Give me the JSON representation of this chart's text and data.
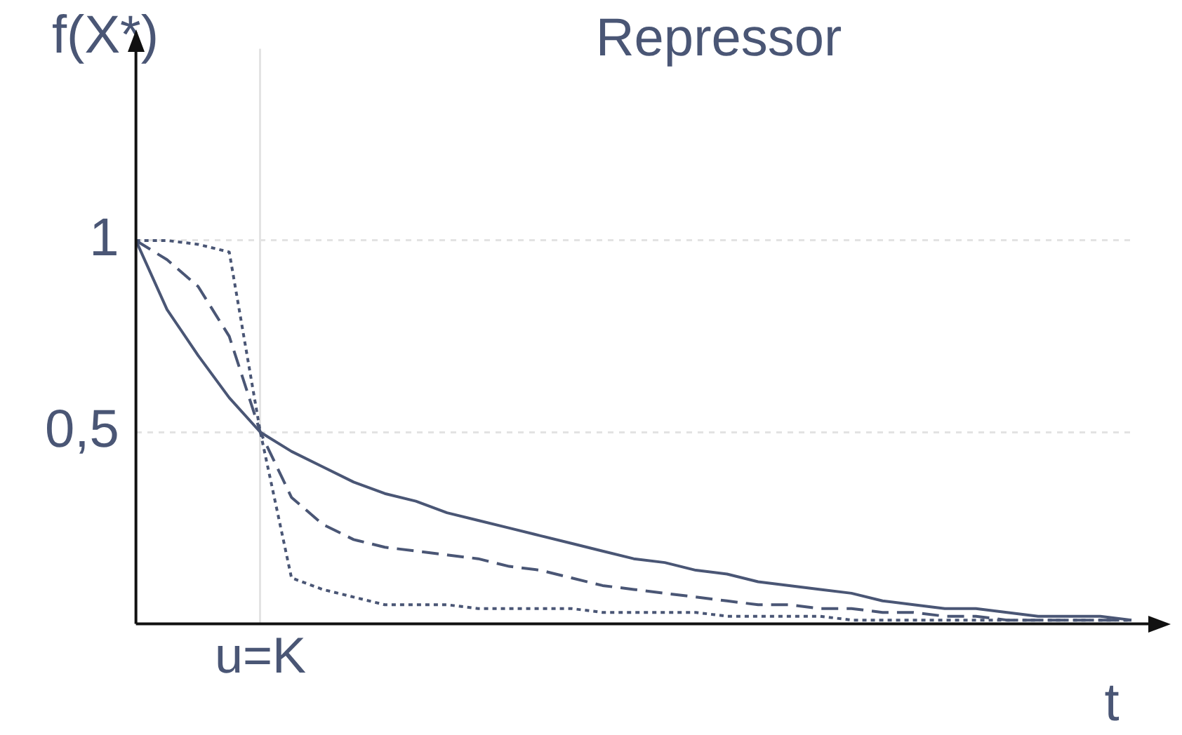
{
  "chart_data": {
    "type": "line",
    "title": "Repressor",
    "ylabel": "f(X*)",
    "xlabel": "t",
    "categories": [
      null,
      null,
      null,
      null,
      "u=K",
      null,
      null,
      null,
      null,
      null,
      null,
      null,
      null,
      null,
      null,
      null,
      null,
      null,
      null,
      null,
      null,
      null,
      null,
      null,
      null,
      null,
      null,
      null,
      null,
      null,
      null,
      null,
      null
    ],
    "ylim": [
      0,
      1.5
    ],
    "yticks": [
      {
        "value": 0.5,
        "label": "0,5"
      },
      {
        "value": 1,
        "label": "1"
      }
    ],
    "grid": true,
    "legend": false,
    "marker": "none",
    "series": [
      {
        "color": "#4a5675",
        "line_style": "solid",
        "values": [
          1,
          0.82,
          0.7,
          0.59,
          0.5,
          0.45,
          0.41,
          0.37,
          0.34,
          0.32,
          0.29,
          0.27,
          0.25,
          0.23,
          0.21,
          0.19,
          0.17,
          0.16,
          0.14,
          0.13,
          0.11,
          0.1,
          0.09,
          0.08,
          0.06,
          0.05,
          0.04,
          0.04,
          0.03,
          0.02,
          0.02,
          0.02,
          0.01
        ]
      },
      {
        "color": "#4a5675",
        "line_style": "dashed",
        "values": [
          1,
          0.95,
          0.88,
          0.75,
          0.5,
          0.33,
          0.26,
          0.22,
          0.2,
          0.19,
          0.18,
          0.17,
          0.15,
          0.14,
          0.12,
          0.1,
          0.09,
          0.08,
          0.07,
          0.06,
          0.05,
          0.05,
          0.04,
          0.04,
          0.03,
          0.03,
          0.02,
          0.02,
          0.01,
          0.01,
          0.01,
          0.01,
          0.01
        ]
      },
      {
        "color": "#4a5675",
        "line_style": "dotted",
        "values": [
          1,
          1,
          0.99,
          0.97,
          0.5,
          0.12,
          0.09,
          0.07,
          0.05,
          0.05,
          0.05,
          0.04,
          0.04,
          0.04,
          0.04,
          0.03,
          0.03,
          0.03,
          0.03,
          0.02,
          0.02,
          0.02,
          0.02,
          0.01,
          0.01,
          0.01,
          0.01,
          0.01,
          0.01,
          0.01,
          0.01,
          0.01,
          0.01
        ]
      }
    ]
  }
}
